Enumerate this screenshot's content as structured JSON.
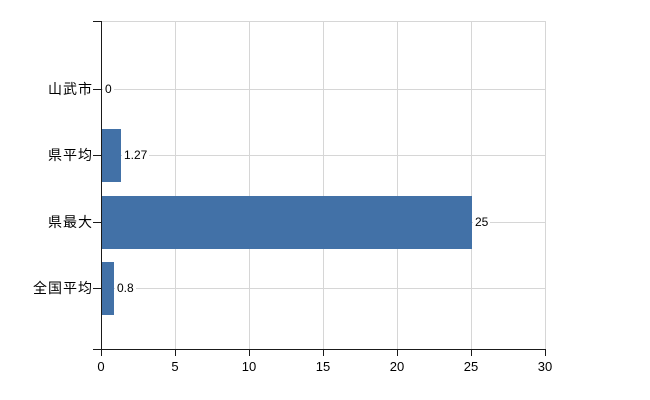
{
  "chart_data": {
    "type": "bar",
    "orientation": "horizontal",
    "title": "",
    "xlabel": "",
    "ylabel": "",
    "categories": [
      "山武市",
      "県平均",
      "県最大",
      "全国平均"
    ],
    "values": [
      0,
      1.27,
      25,
      0.8
    ],
    "value_labels": [
      "0",
      "1.27",
      "25",
      "0.8"
    ],
    "xlim": [
      0,
      30
    ],
    "xticks": [
      0,
      5,
      10,
      15,
      20,
      25,
      30
    ],
    "xtick_labels": [
      "0",
      "5",
      "10",
      "15",
      "20",
      "25",
      "30"
    ],
    "grid": true,
    "legend": false,
    "colors": {
      "bar": "#4271a7",
      "grid": "#d6d6d6",
      "axis": "#1a1a1a",
      "text": "#000000",
      "background": "#ffffff"
    }
  }
}
